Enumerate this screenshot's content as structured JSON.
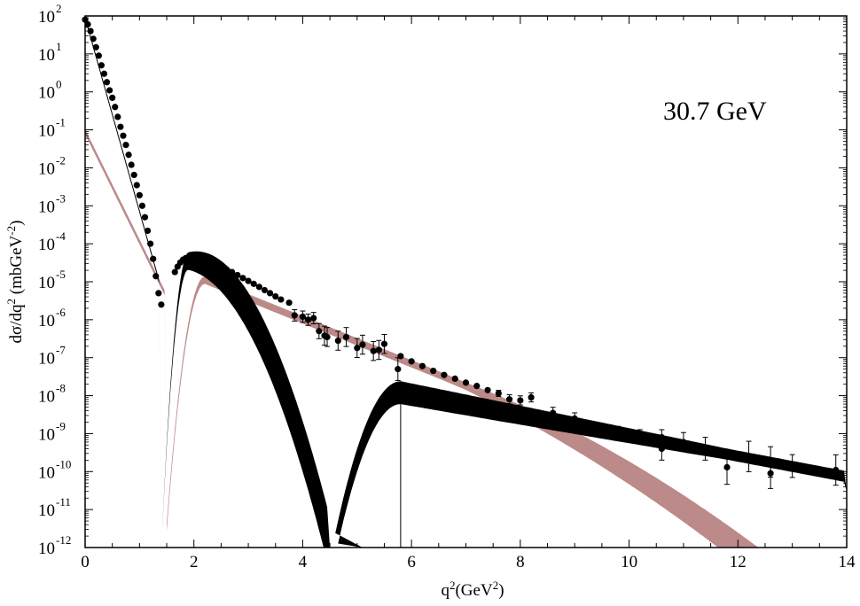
{
  "chart_data": {
    "type": "scatter",
    "annotation": "30.7 GeV",
    "xlabel": {
      "main": "q",
      "sup": "2",
      "unit": "(GeV",
      "unit_sup": "2",
      "close": ")"
    },
    "ylabel": {
      "a": "dσ/dq",
      "sup1": "2",
      "b": " (mbGeV",
      "sup2": "-2",
      "c": ")"
    },
    "x_axis": {
      "min": 0,
      "max": 14,
      "major_ticks": [
        0,
        2,
        4,
        6,
        8,
        10,
        12,
        14
      ],
      "labels": [
        "0",
        "2",
        "4",
        "6",
        "8",
        "10",
        "12",
        "14"
      ]
    },
    "y_axis": {
      "scale": "log",
      "min_exp": -12,
      "max_exp": 2,
      "tick_exponents": [
        2,
        1,
        0,
        -1,
        -2,
        -3,
        -4,
        -5,
        -6,
        -7,
        -8,
        -9,
        -10,
        -11,
        -12
      ],
      "base_label": "10"
    },
    "colors": {
      "data": "#000000",
      "band_black": "#000000",
      "band_pink": "#bc8a88"
    },
    "series": [
      {
        "kind": "data",
        "points": [
          [
            0.0,
            80,
            0
          ],
          [
            0.05,
            60,
            0
          ],
          [
            0.1,
            40,
            0
          ],
          [
            0.15,
            25,
            0
          ],
          [
            0.2,
            15,
            0
          ],
          [
            0.25,
            9,
            0
          ],
          [
            0.3,
            5,
            0
          ],
          [
            0.35,
            3,
            0
          ],
          [
            0.4,
            1.8,
            0
          ],
          [
            0.45,
            1.1,
            0
          ],
          [
            0.5,
            0.7,
            0
          ],
          [
            0.55,
            0.4,
            0
          ],
          [
            0.6,
            0.22,
            0
          ],
          [
            0.65,
            0.12,
            0
          ],
          [
            0.7,
            0.07,
            0
          ],
          [
            0.75,
            0.04,
            0
          ],
          [
            0.8,
            0.022,
            0
          ],
          [
            0.85,
            0.012,
            0
          ],
          [
            0.9,
            0.0065,
            0
          ],
          [
            0.95,
            0.0035,
            0
          ],
          [
            1.0,
            0.0019,
            0
          ],
          [
            1.05,
            0.001,
            0
          ],
          [
            1.1,
            0.0005,
            0
          ],
          [
            1.15,
            0.00022,
            0
          ],
          [
            1.2,
            0.0001,
            0
          ],
          [
            1.25,
            4e-05,
            0
          ],
          [
            1.3,
            1.4e-05,
            0
          ],
          [
            1.35,
            5e-06,
            0
          ],
          [
            1.4,
            2.5e-06,
            0
          ],
          [
            1.65,
            1.8e-05,
            0
          ],
          [
            1.7,
            2.5e-05,
            0
          ],
          [
            1.75,
            3.2e-05,
            0
          ],
          [
            1.8,
            3.8e-05,
            0
          ],
          [
            1.85,
            4.2e-05,
            0
          ],
          [
            1.9,
            4.4e-05,
            0
          ],
          [
            1.95,
            4.4e-05,
            0
          ],
          [
            2.0,
            4.3e-05,
            0
          ],
          [
            2.1,
            4e-05,
            0
          ],
          [
            2.2,
            3.7e-05,
            0
          ],
          [
            2.3,
            3.3e-05,
            0
          ],
          [
            2.4,
            2.9e-05,
            0
          ],
          [
            2.5,
            2.5e-05,
            0
          ],
          [
            2.6,
            2.1e-05,
            0
          ],
          [
            2.7,
            1.8e-05,
            0
          ],
          [
            2.8,
            1.5e-05,
            0
          ],
          [
            2.9,
            1.25e-05,
            0
          ],
          [
            3.0,
            1.05e-05,
            0
          ],
          [
            3.1,
            8.8e-06,
            0
          ],
          [
            3.2,
            7.3e-06,
            0
          ],
          [
            3.3,
            6e-06,
            0
          ],
          [
            3.4,
            5e-06,
            0
          ],
          [
            3.5,
            4.1e-06,
            0
          ],
          [
            3.6,
            3.4e-06,
            0
          ],
          [
            3.75,
            2.8e-06,
            0
          ],
          [
            3.85,
            1.3e-06,
            0.15
          ],
          [
            4.0,
            1.2e-06,
            0.15
          ],
          [
            4.1,
            1e-06,
            0.15
          ],
          [
            4.2,
            1.1e-06,
            0.15
          ],
          [
            4.3,
            5e-07,
            0.2
          ],
          [
            4.4,
            3.8e-07,
            0.25
          ],
          [
            4.45,
            3.5e-07,
            0.25
          ],
          [
            4.65,
            2.8e-07,
            0.25
          ],
          [
            4.8,
            3.5e-07,
            0.25
          ],
          [
            5.0,
            1.8e-07,
            0.25
          ],
          [
            5.1,
            2.2e-07,
            0.25
          ],
          [
            5.3,
            1.5e-07,
            0.25
          ],
          [
            5.4,
            1.6e-07,
            0.25
          ],
          [
            5.5,
            2.3e-07,
            0.25
          ],
          [
            5.75,
            5e-08,
            0.3
          ],
          [
            5.8,
            1.1e-07,
            0
          ],
          [
            6.0,
            8e-08,
            0
          ],
          [
            6.2,
            6e-08,
            0
          ],
          [
            6.4,
            4.5e-08,
            0
          ],
          [
            6.6,
            3.5e-08,
            0
          ],
          [
            6.8,
            2.8e-08,
            0
          ],
          [
            7.0,
            2.2e-08,
            0
          ],
          [
            7.2,
            1.8e-08,
            0
          ],
          [
            7.4,
            1.4e-08,
            0
          ],
          [
            7.6,
            1.15e-08,
            0.08
          ],
          [
            7.8,
            8e-09,
            0.12
          ],
          [
            8.0,
            7.5e-09,
            0.12
          ],
          [
            8.2,
            9e-09,
            0.12
          ],
          [
            8.6,
            3.5e-09,
            0.15
          ],
          [
            9.0,
            2.5e-09,
            0.15
          ],
          [
            9.8,
            1.1e-09,
            0.15
          ],
          [
            10.2,
            9e-10,
            0.15
          ],
          [
            10.6,
            8e-10,
            0.2
          ],
          [
            10.6,
            4e-10,
            0.3
          ],
          [
            11.0,
            6e-10,
            0.25
          ],
          [
            11.4,
            4e-10,
            0.3
          ],
          [
            11.8,
            1.3e-10,
            0.45
          ],
          [
            12.2,
            2.5e-10,
            0.4
          ],
          [
            12.6,
            9e-11,
            0.4
          ],
          [
            12.6,
            1.8e-10,
            0.4
          ],
          [
            13.0,
            1.4e-10,
            0.3
          ],
          [
            13.8,
            1.1e-10,
            0.4
          ]
        ]
      }
    ]
  }
}
